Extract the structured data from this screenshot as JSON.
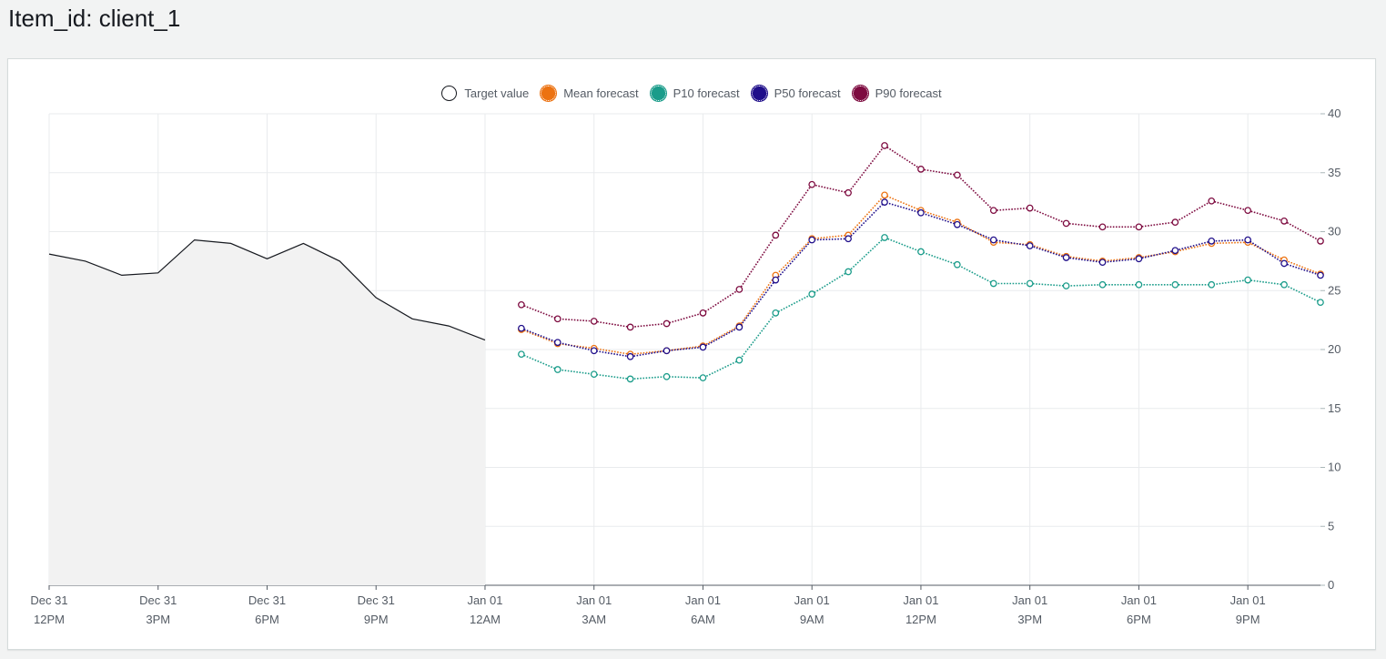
{
  "page": {
    "title": "Item_id: client_1"
  },
  "chart_data": {
    "type": "line",
    "x": [
      "Dec 31 12PM",
      "Dec 31 1PM",
      "Dec 31 2PM",
      "Dec 31 3PM",
      "Dec 31 4PM",
      "Dec 31 5PM",
      "Dec 31 6PM",
      "Dec 31 7PM",
      "Dec 31 8PM",
      "Dec 31 9PM",
      "Dec 31 10PM",
      "Dec 31 11PM",
      "Jan 01 12AM",
      "Jan 01 1AM",
      "Jan 01 2AM",
      "Jan 01 3AM",
      "Jan 01 4AM",
      "Jan 01 5AM",
      "Jan 01 6AM",
      "Jan 01 7AM",
      "Jan 01 8AM",
      "Jan 01 9AM",
      "Jan 01 10AM",
      "Jan 01 11AM",
      "Jan 01 12PM",
      "Jan 01 1PM",
      "Jan 01 2PM",
      "Jan 01 3PM",
      "Jan 01 4PM",
      "Jan 01 5PM",
      "Jan 01 6PM",
      "Jan 01 7PM",
      "Jan 01 8PM",
      "Jan 01 9PM",
      "Jan 01 10PM",
      "Jan 01 11PM"
    ],
    "x_ticks": [
      {
        "line1": "Dec 31",
        "line2": "12PM",
        "index": 0
      },
      {
        "line1": "Dec 31",
        "line2": "3PM",
        "index": 3
      },
      {
        "line1": "Dec 31",
        "line2": "6PM",
        "index": 6
      },
      {
        "line1": "Dec 31",
        "line2": "9PM",
        "index": 9
      },
      {
        "line1": "Jan 01",
        "line2": "12AM",
        "index": 12
      },
      {
        "line1": "Jan 01",
        "line2": "3AM",
        "index": 15
      },
      {
        "line1": "Jan 01",
        "line2": "6AM",
        "index": 18
      },
      {
        "line1": "Jan 01",
        "line2": "9AM",
        "index": 21
      },
      {
        "line1": "Jan 01",
        "line2": "12PM",
        "index": 24
      },
      {
        "line1": "Jan 01",
        "line2": "3PM",
        "index": 27
      },
      {
        "line1": "Jan 01",
        "line2": "6PM",
        "index": 30
      },
      {
        "line1": "Jan 01",
        "line2": "9PM",
        "index": 33
      }
    ],
    "y_ticks": [
      0,
      5,
      10,
      15,
      20,
      25,
      30,
      35,
      40
    ],
    "ylim": [
      0,
      40
    ],
    "y_axis_position": "right",
    "grid": true,
    "legend_position": "top-center",
    "series": [
      {
        "name": "Target value",
        "color": "#16191f",
        "style": "solid-area",
        "fill": "#f2f2f2",
        "values": [
          28.1,
          27.5,
          26.3,
          26.5,
          29.3,
          29.0,
          27.7,
          29.0,
          27.5,
          24.4,
          22.6,
          22.0,
          20.8,
          null,
          null,
          null,
          null,
          null,
          null,
          null,
          null,
          null,
          null,
          null,
          null,
          null,
          null,
          null,
          null,
          null,
          null,
          null,
          null,
          null,
          null,
          null
        ]
      },
      {
        "name": "Mean forecast",
        "color": "#ec7211",
        "style": "dotted-markers",
        "values": [
          null,
          null,
          null,
          null,
          null,
          null,
          null,
          null,
          null,
          null,
          null,
          null,
          null,
          21.7,
          20.5,
          20.1,
          19.6,
          19.9,
          20.3,
          22.0,
          26.3,
          29.4,
          29.7,
          33.1,
          31.8,
          30.8,
          29.1,
          28.9,
          27.9,
          27.5,
          27.8,
          28.3,
          29.0,
          29.1,
          27.6,
          26.4
        ]
      },
      {
        "name": "P10 forecast",
        "color": "#1a9c8a",
        "style": "dotted-markers",
        "values": [
          null,
          null,
          null,
          null,
          null,
          null,
          null,
          null,
          null,
          null,
          null,
          null,
          null,
          19.6,
          18.3,
          17.9,
          17.5,
          17.7,
          17.6,
          19.1,
          23.1,
          24.7,
          26.6,
          29.5,
          28.3,
          27.2,
          25.6,
          25.6,
          25.4,
          25.5,
          25.5,
          25.5,
          25.5,
          25.9,
          25.5,
          24.0
        ]
      },
      {
        "name": "P50 forecast",
        "color": "#1f0e8a",
        "style": "dotted-markers",
        "values": [
          null,
          null,
          null,
          null,
          null,
          null,
          null,
          null,
          null,
          null,
          null,
          null,
          null,
          21.8,
          20.6,
          19.9,
          19.4,
          19.9,
          20.2,
          21.9,
          25.9,
          29.3,
          29.4,
          32.5,
          31.6,
          30.6,
          29.3,
          28.8,
          27.8,
          27.4,
          27.7,
          28.4,
          29.2,
          29.3,
          27.3,
          26.3
        ]
      },
      {
        "name": "P90 forecast",
        "color": "#7d0a3f",
        "style": "dotted-markers",
        "values": [
          null,
          null,
          null,
          null,
          null,
          null,
          null,
          null,
          null,
          null,
          null,
          null,
          null,
          23.8,
          22.6,
          22.4,
          21.9,
          22.2,
          23.1,
          25.1,
          29.7,
          34.0,
          33.3,
          37.3,
          35.3,
          34.8,
          31.8,
          32.0,
          30.7,
          30.4,
          30.4,
          30.8,
          32.6,
          31.8,
          30.9,
          29.2
        ]
      }
    ]
  }
}
